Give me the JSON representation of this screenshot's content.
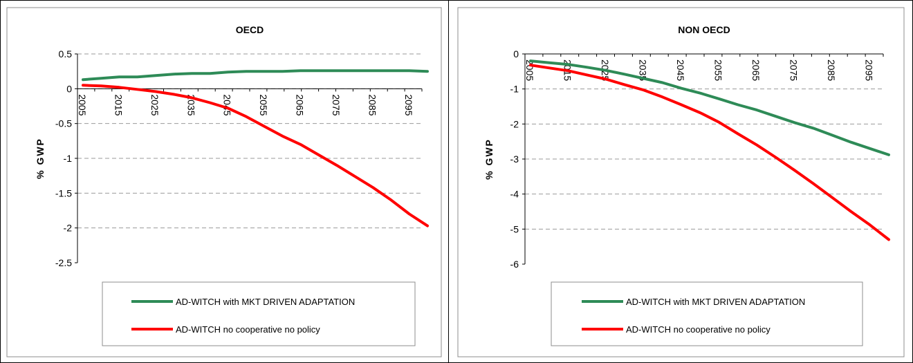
{
  "colors": {
    "green_series": "#2E8B57",
    "red_series": "#FF0000",
    "gridline": "#9a9a9a",
    "chart_border": "#8c8c8c"
  },
  "chart_data": [
    {
      "type": "line",
      "title": "OECD",
      "ylabel": "% GWP",
      "xlabel": "",
      "ylim": [
        -2.5,
        0.5
      ],
      "y_ticks": [
        0.5,
        0,
        -0.5,
        -1,
        -1.5,
        -2,
        -2.5
      ],
      "x_tick_labels": [
        "2005",
        "2015",
        "2025",
        "2035",
        "2045",
        "2055",
        "2065",
        "2075",
        "2085",
        "2095"
      ],
      "x": [
        2005,
        2010,
        2015,
        2020,
        2025,
        2030,
        2035,
        2040,
        2045,
        2050,
        2055,
        2060,
        2065,
        2070,
        2075,
        2080,
        2085,
        2090,
        2095,
        2100
      ],
      "grid": true,
      "legend_position": "bottom",
      "series": [
        {
          "name": "AD-WITCH with MKT DRIVEN ADAPTATION",
          "color": "#2E8B57",
          "values": [
            0.13,
            0.15,
            0.17,
            0.17,
            0.19,
            0.21,
            0.22,
            0.22,
            0.24,
            0.25,
            0.25,
            0.25,
            0.26,
            0.26,
            0.26,
            0.26,
            0.26,
            0.26,
            0.26,
            0.25
          ]
        },
        {
          "name": "AD-WITCH no cooperative no policy",
          "color": "#FF0000",
          "values": [
            0.05,
            0.04,
            0.02,
            -0.01,
            -0.04,
            -0.08,
            -0.13,
            -0.2,
            -0.28,
            -0.4,
            -0.54,
            -0.68,
            -0.8,
            -0.95,
            -1.1,
            -1.26,
            -1.42,
            -1.6,
            -1.8,
            -1.97
          ]
        }
      ]
    },
    {
      "type": "line",
      "title": "NON OECD",
      "ylabel": "% GWP",
      "xlabel": "",
      "ylim": [
        -6,
        0
      ],
      "y_ticks": [
        0,
        -1,
        -2,
        -3,
        -4,
        -5,
        -6
      ],
      "x_tick_labels": [
        "2005",
        "2015",
        "2025",
        "2035",
        "2045",
        "2055",
        "2065",
        "2075",
        "2085",
        "2095"
      ],
      "x": [
        2005,
        2010,
        2015,
        2020,
        2025,
        2030,
        2035,
        2040,
        2045,
        2050,
        2055,
        2060,
        2065,
        2070,
        2075,
        2080,
        2085,
        2090,
        2095,
        2100
      ],
      "grid": true,
      "legend_position": "bottom",
      "series": [
        {
          "name": "AD-WITCH with MKT DRIVEN ADAPTATION",
          "color": "#2E8B57",
          "values": [
            -0.2,
            -0.25,
            -0.3,
            -0.38,
            -0.47,
            -0.58,
            -0.7,
            -0.82,
            -0.98,
            -1.12,
            -1.28,
            -1.45,
            -1.6,
            -1.78,
            -1.96,
            -2.12,
            -2.32,
            -2.52,
            -2.7,
            -2.88
          ]
        },
        {
          "name": "AD-WITCH no cooperative no policy",
          "color": "#FF0000",
          "values": [
            -0.32,
            -0.4,
            -0.48,
            -0.6,
            -0.72,
            -0.88,
            -1.03,
            -1.23,
            -1.45,
            -1.68,
            -1.95,
            -2.28,
            -2.6,
            -2.95,
            -3.32,
            -3.7,
            -4.1,
            -4.5,
            -4.88,
            -5.3
          ]
        }
      ]
    }
  ]
}
